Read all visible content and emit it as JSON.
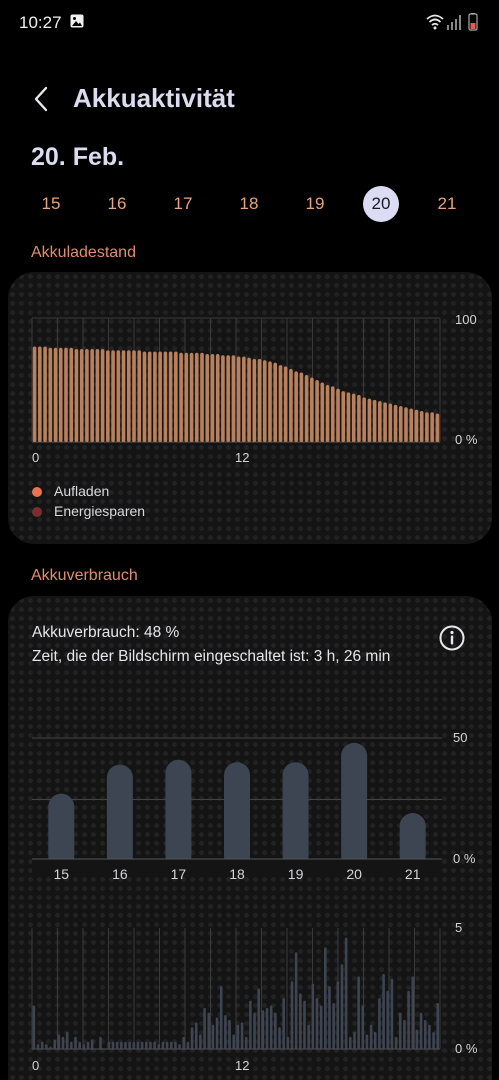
{
  "status_bar": {
    "time": "10:27"
  },
  "header": {
    "title": "Akkuaktivität"
  },
  "date_title": "20. Feb.",
  "days": [
    {
      "label": "15",
      "selected": false
    },
    {
      "label": "16",
      "selected": false
    },
    {
      "label": "17",
      "selected": false
    },
    {
      "label": "18",
      "selected": false
    },
    {
      "label": "19",
      "selected": false
    },
    {
      "label": "20",
      "selected": true
    },
    {
      "label": "21",
      "selected": false
    }
  ],
  "battery_level": {
    "section_title": "Akkuladestand",
    "y_max_label": "100",
    "y_min_label": "0 %",
    "x_labels": [
      "0",
      "12"
    ],
    "legend": [
      {
        "label": "Aufladen",
        "color": "#e8734f"
      },
      {
        "label": "Energiesparen",
        "color": "#7a2e2e"
      }
    ]
  },
  "battery_usage": {
    "section_title": "Akkuverbrauch",
    "usage_text": "Akkuverbrauch: 48 %",
    "screen_time_text": "Zeit, die der Bildschirm eingeschaltet ist: 3 h, 26 min",
    "y_top_label": "50",
    "y_min_label": "0 %",
    "hourly_y_top_label": "5",
    "hourly_y_min_label": "0 %",
    "hourly_x_labels": [
      "0",
      "12"
    ]
  },
  "colors": {
    "accent": "#e08c6d",
    "bar_fill": "#3e4552",
    "level_bar": "#b8805c",
    "selected_day": "#dcdcf3"
  },
  "chart_data": [
    {
      "type": "bar",
      "title": "Akkuladestand",
      "x_ticks": [
        "0",
        "12"
      ],
      "ylim": [
        0,
        100
      ],
      "values": [
        77,
        77,
        77,
        76,
        76,
        76,
        76,
        76,
        75,
        75,
        75,
        75,
        75,
        75,
        74,
        74,
        74,
        74,
        74,
        74,
        74,
        73,
        73,
        73,
        73,
        73,
        73,
        73,
        72,
        72,
        72,
        72,
        72,
        71,
        71,
        71,
        70,
        70,
        70,
        69,
        69,
        68,
        67,
        67,
        66,
        65,
        64,
        62,
        61,
        59,
        57,
        56,
        54,
        52,
        50,
        48,
        46,
        45,
        43,
        41,
        40,
        39,
        38,
        36,
        35,
        34,
        33,
        32,
        31,
        30,
        29,
        28,
        27,
        26,
        25,
        24,
        24,
        23
      ]
    },
    {
      "type": "bar",
      "title": "Akkuverbrauch",
      "categories": [
        "15",
        "16",
        "17",
        "18",
        "19",
        "20",
        "21"
      ],
      "values": [
        27,
        39,
        41,
        40,
        40,
        48,
        19
      ],
      "y_ticks": [
        "0 %",
        "50"
      ],
      "ylim": [
        0,
        50
      ]
    },
    {
      "type": "bar",
      "x_ticks": [
        "0",
        "12"
      ],
      "ylim": [
        0,
        5
      ],
      "values": [
        1.8,
        0.2,
        0.3,
        0.2,
        0.1,
        0.4,
        0.6,
        0.5,
        0.7,
        0.3,
        0.5,
        0.3,
        0.2,
        0.3,
        0.4,
        0.0,
        0.5,
        0.0,
        0.3,
        0.3,
        0.3,
        0.3,
        0.3,
        0.3,
        0.3,
        0.3,
        0.3,
        0.3,
        0.3,
        0.3,
        0.2,
        0.3,
        0.3,
        0.3,
        0.3,
        0.2,
        0.5,
        0.3,
        0.9,
        1.1,
        0.6,
        1.7,
        1.5,
        1.0,
        1.3,
        2.6,
        1.4,
        1.2,
        0.6,
        1.0,
        1.1,
        0.5,
        2.0,
        1.5,
        2.5,
        1.6,
        1.7,
        1.8,
        1.5,
        0.9,
        2.1,
        0.5,
        2.8,
        4.0,
        2.3,
        2.0,
        1.0,
        2.7,
        2.1,
        1.8,
        4.2,
        2.6,
        1.9,
        2.8,
        3.5,
        4.6,
        0.5,
        0.7,
        3.0,
        1.8,
        0.6,
        1.0,
        0.7,
        2.1,
        3.1,
        2.4,
        2.9,
        0.5,
        1.5,
        1.2,
        2.4,
        3.0,
        0.8,
        1.5,
        1.2,
        1.0,
        0.7,
        1.9
      ]
    }
  ]
}
